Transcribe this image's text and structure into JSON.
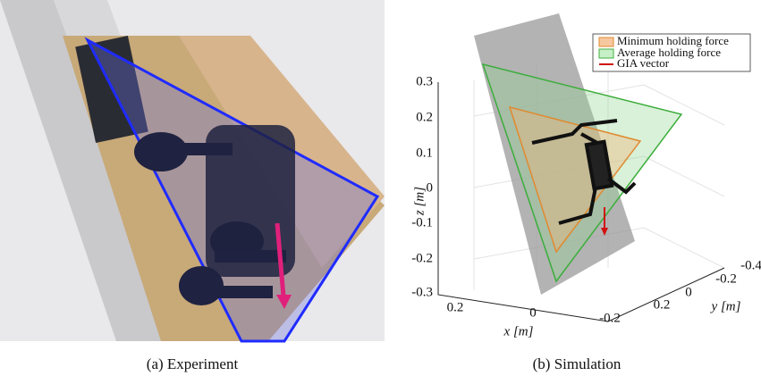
{
  "figure": {
    "subfigures": [
      {
        "caption": "(a) Experiment"
      },
      {
        "caption": "(b) Simulation",
        "legend": [
          "Minimum holding force",
          "Average holding force",
          "GIA vector"
        ],
        "axes": {
          "z": {
            "label": "z [m]",
            "ticks": [
              "0.3",
              "0.2",
              "0.1",
              "0",
              "-0.1",
              "-0.2",
              "-0.3"
            ]
          },
          "x": {
            "label": "x [m]",
            "ticks": [
              "0.2",
              "0",
              "-0.2"
            ]
          },
          "y": {
            "label": "y [m]",
            "ticks": [
              "-0.4",
              "-0.2",
              "0",
              "0.2"
            ]
          }
        }
      }
    ]
  }
}
